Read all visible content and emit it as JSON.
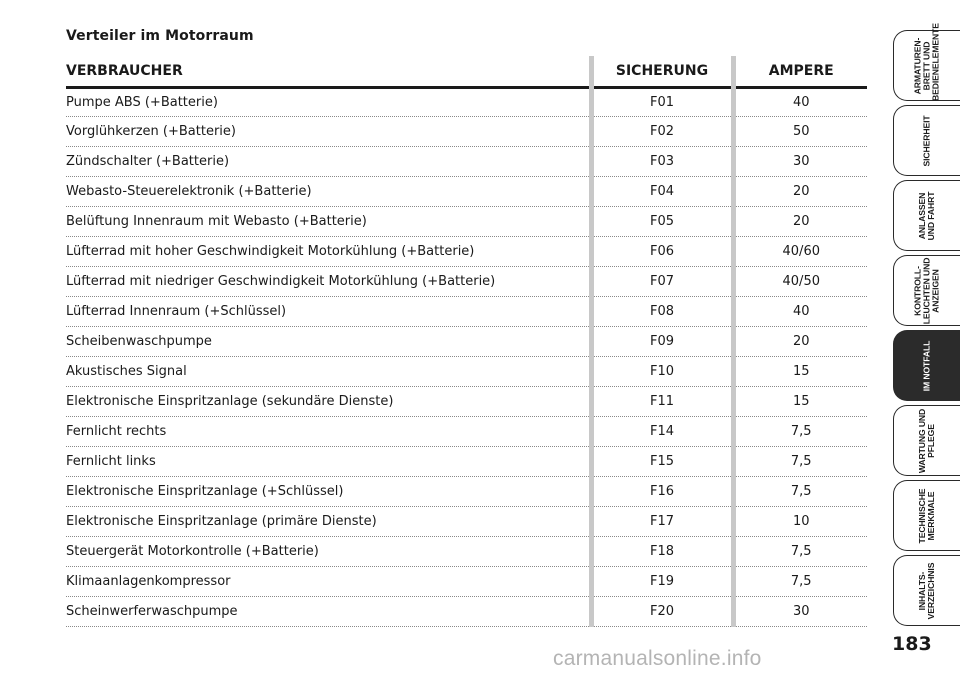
{
  "title": "Verteiler im Motorraum",
  "table": {
    "headers": {
      "load": "VERBRAUCHER",
      "fuse": "SICHERUNG",
      "ampere": "AMPERE"
    },
    "rows": [
      {
        "load": "Pumpe ABS (+Batterie)",
        "fuse": "F01",
        "ampere": "40"
      },
      {
        "load": "Vorglühkerzen (+Batterie)",
        "fuse": "F02",
        "ampere": "50"
      },
      {
        "load": "Zündschalter (+Batterie)",
        "fuse": "F03",
        "ampere": "30"
      },
      {
        "load": "Webasto-Steuerelektronik (+Batterie)",
        "fuse": "F04",
        "ampere": "20"
      },
      {
        "load": "Belüftung Innenraum mit Webasto (+Batterie)",
        "fuse": "F05",
        "ampere": "20"
      },
      {
        "load": "Lüfterrad mit hoher Geschwindigkeit Motorkühlung (+Batterie)",
        "fuse": "F06",
        "ampere": "40/60"
      },
      {
        "load": "Lüfterrad mit niedriger Geschwindigkeit Motorkühlung (+Batterie)",
        "fuse": "F07",
        "ampere": "40/50"
      },
      {
        "load": "Lüfterrad Innenraum (+Schlüssel)",
        "fuse": "F08",
        "ampere": "40"
      },
      {
        "load": "Scheibenwaschpumpe",
        "fuse": "F09",
        "ampere": "20"
      },
      {
        "load": "Akustisches Signal",
        "fuse": "F10",
        "ampere": "15"
      },
      {
        "load": "Elektronische Einspritzanlage (sekundäre Dienste)",
        "fuse": "F11",
        "ampere": "15"
      },
      {
        "load": "Fernlicht rechts",
        "fuse": "F14",
        "ampere": "7,5"
      },
      {
        "load": "Fernlicht links",
        "fuse": "F15",
        "ampere": "7,5"
      },
      {
        "load": "Elektronische Einspritzanlage (+Schlüssel)",
        "fuse": "F16",
        "ampere": "7,5"
      },
      {
        "load": "Elektronische Einspritzanlage (primäre Dienste)",
        "fuse": "F17",
        "ampere": "10"
      },
      {
        "load": "Steuergerät Motorkontrolle (+Batterie)",
        "fuse": "F18",
        "ampere": "7,5"
      },
      {
        "load": "Klimaanlagenkompressor",
        "fuse": "F19",
        "ampere": "7,5"
      },
      {
        "load": "Scheinwerferwaschpumpe",
        "fuse": "F20",
        "ampere": "30"
      }
    ]
  },
  "tabs": [
    {
      "label": "ARMATUREN-\nBRETT UND\nBEDIENELEMENTE",
      "active": false
    },
    {
      "label": "SICHERHEIT",
      "active": false
    },
    {
      "label": "ANLASSEN\nUND FAHRT",
      "active": false
    },
    {
      "label": "KONTROLL-\nLEUCHTEN UND\nANZEIGEN",
      "active": false
    },
    {
      "label": "IM NOTFALL",
      "active": true
    },
    {
      "label": "WARTUNG UND\nPFLEGE",
      "active": false
    },
    {
      "label": "TECHNISCHE\nMERKMALE",
      "active": false
    },
    {
      "label": "INHALTS-\nVERZEICHNIS",
      "active": false
    }
  ],
  "page_number": "183",
  "watermark": "carmanualsonline.info",
  "colors": {
    "text": "#1a1a1a",
    "active_tab": "#2b2b2b",
    "column_separator": "#c8c8c8",
    "watermark": "#b4b4b4"
  }
}
